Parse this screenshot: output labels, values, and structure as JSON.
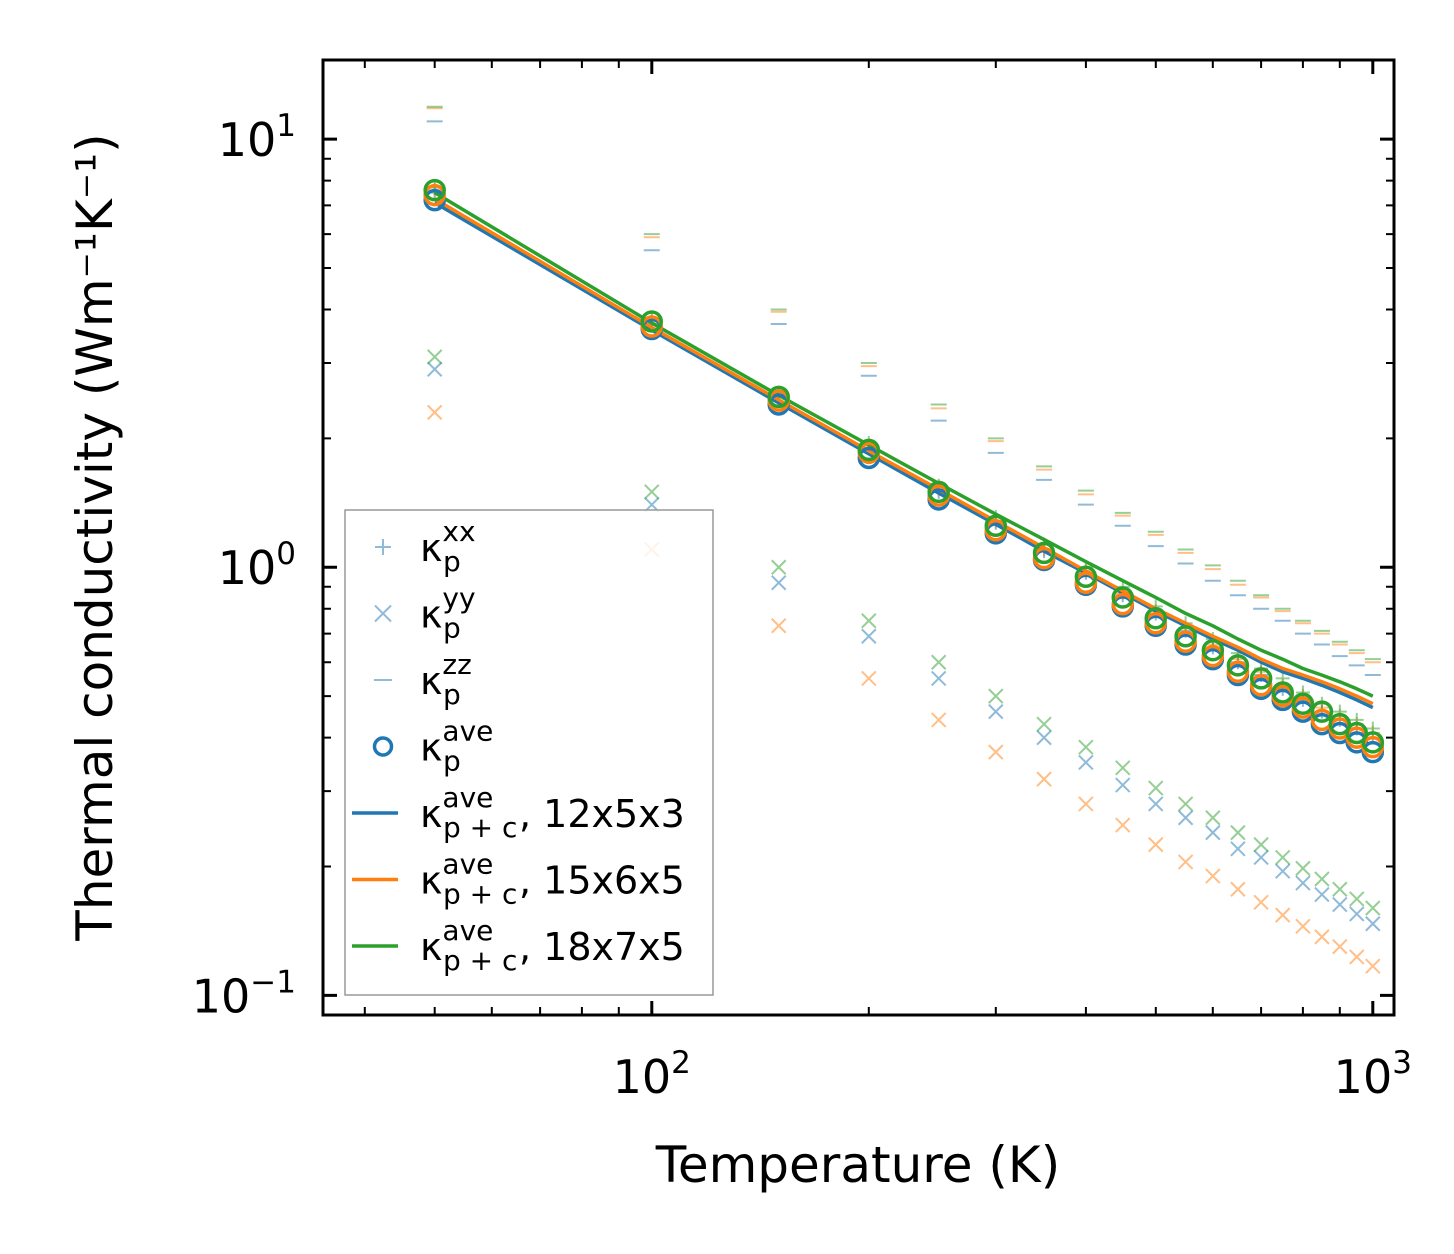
{
  "chart_data": {
    "type": "scatter",
    "title": "",
    "xlabel": "Temperature (K)",
    "ylabel": "Thermal conductivity (Wm⁻¹K⁻¹)",
    "xscale": "log",
    "yscale": "log",
    "xlim": [
      35,
      1070
    ],
    "ylim": [
      0.09,
      15.3
    ],
    "x_ticks": [
      {
        "base": "10",
        "exp": "2",
        "value": 100
      },
      {
        "base": "10",
        "exp": "3",
        "value": 1000
      }
    ],
    "y_ticks": [
      {
        "base": "10",
        "exp": "−1",
        "value": 0.1
      },
      {
        "base": "10",
        "exp": "0",
        "value": 1
      },
      {
        "base": "10",
        "exp": "1",
        "value": 10
      }
    ],
    "legend_position": "lower-left",
    "temperatures": [
      50,
      100,
      150,
      200,
      250,
      300,
      350,
      400,
      450,
      500,
      550,
      600,
      650,
      700,
      750,
      800,
      850,
      900,
      950,
      1000
    ],
    "colors": {
      "blue": "#1f77b4",
      "orange": "#ff7f0e",
      "green": "#2ca02c"
    },
    "legend": [
      {
        "marker": "plus",
        "label": "κ",
        "sub": "p",
        "sup": "xx",
        "suffix": ""
      },
      {
        "marker": "x",
        "label": "κ",
        "sub": "p",
        "sup": "yy",
        "suffix": ""
      },
      {
        "marker": "dash",
        "label": "κ",
        "sub": "p",
        "sup": "zz",
        "suffix": ""
      },
      {
        "marker": "circle",
        "label": "κ",
        "sub": "p",
        "sup": "ave",
        "suffix": ""
      },
      {
        "marker": "line",
        "color": "#1f77b4",
        "label": "κ",
        "sub": "p + c",
        "sup": "ave",
        "suffix": ", 12x5x3"
      },
      {
        "marker": "line",
        "color": "#ff7f0e",
        "label": "κ",
        "sub": "p + c",
        "sup": "ave",
        "suffix": ", 15x6x5"
      },
      {
        "marker": "line",
        "color": "#2ca02c",
        "label": "κ",
        "sub": "p + c",
        "sup": "ave",
        "suffix": ", 18x7x5"
      }
    ],
    "series": [
      {
        "name": "12x5x3",
        "color": "#1f77b4",
        "kxx": [
          7.5,
          3.7,
          2.5,
          1.9,
          1.5,
          1.27,
          1.09,
          0.97,
          0.86,
          0.78,
          0.71,
          0.65,
          0.6,
          0.56,
          0.52,
          0.49,
          0.46,
          0.44,
          0.42,
          0.4
        ],
        "kyy": [
          2.9,
          1.4,
          0.92,
          0.69,
          0.55,
          0.46,
          0.4,
          0.35,
          0.31,
          0.28,
          0.26,
          0.24,
          0.22,
          0.21,
          0.195,
          0.183,
          0.172,
          0.163,
          0.155,
          0.147
        ],
        "kzz": [
          11.0,
          5.5,
          3.7,
          2.8,
          2.2,
          1.85,
          1.6,
          1.4,
          1.25,
          1.12,
          1.02,
          0.93,
          0.86,
          0.8,
          0.75,
          0.7,
          0.66,
          0.62,
          0.59,
          0.56
        ],
        "kave": [
          7.2,
          3.6,
          2.4,
          1.8,
          1.44,
          1.2,
          1.04,
          0.91,
          0.81,
          0.73,
          0.66,
          0.61,
          0.56,
          0.52,
          0.49,
          0.46,
          0.43,
          0.41,
          0.39,
          0.37
        ],
        "kpc": [
          7.1,
          3.58,
          2.42,
          1.84,
          1.49,
          1.26,
          1.09,
          0.97,
          0.87,
          0.79,
          0.73,
          0.68,
          0.64,
          0.6,
          0.57,
          0.55,
          0.53,
          0.51,
          0.49,
          0.47
        ]
      },
      {
        "name": "15x6x5",
        "color": "#ff7f0e",
        "kxx": [
          7.6,
          3.75,
          2.52,
          1.92,
          1.52,
          1.28,
          1.1,
          0.98,
          0.87,
          0.79,
          0.72,
          0.66,
          0.61,
          0.57,
          0.53,
          0.5,
          0.47,
          0.45,
          0.43,
          0.41
        ],
        "kyy": [
          2.3,
          1.1,
          0.73,
          0.55,
          0.44,
          0.37,
          0.32,
          0.28,
          0.25,
          0.225,
          0.205,
          0.19,
          0.177,
          0.165,
          0.154,
          0.145,
          0.137,
          0.13,
          0.123,
          0.117
        ],
        "kzz": [
          11.8,
          5.9,
          3.95,
          2.95,
          2.35,
          1.97,
          1.69,
          1.48,
          1.32,
          1.19,
          1.08,
          0.99,
          0.91,
          0.85,
          0.79,
          0.74,
          0.7,
          0.66,
          0.63,
          0.6
        ],
        "kave": [
          7.4,
          3.65,
          2.45,
          1.85,
          1.47,
          1.22,
          1.05,
          0.92,
          0.82,
          0.74,
          0.67,
          0.62,
          0.57,
          0.53,
          0.5,
          0.47,
          0.44,
          0.42,
          0.4,
          0.38
        ],
        "kpc": [
          7.25,
          3.63,
          2.46,
          1.87,
          1.52,
          1.28,
          1.11,
          0.98,
          0.88,
          0.8,
          0.74,
          0.69,
          0.65,
          0.61,
          0.58,
          0.56,
          0.54,
          0.52,
          0.5,
          0.48
        ]
      },
      {
        "name": "18x7x5",
        "color": "#2ca02c",
        "kxx": [
          7.7,
          3.8,
          2.55,
          1.95,
          1.55,
          1.31,
          1.13,
          1.0,
          0.9,
          0.81,
          0.74,
          0.68,
          0.63,
          0.58,
          0.55,
          0.51,
          0.48,
          0.46,
          0.44,
          0.42
        ],
        "kyy": [
          3.1,
          1.5,
          1.0,
          0.75,
          0.6,
          0.5,
          0.43,
          0.38,
          0.34,
          0.305,
          0.28,
          0.26,
          0.24,
          0.225,
          0.21,
          0.198,
          0.187,
          0.177,
          0.168,
          0.16
        ],
        "kzz": [
          11.9,
          6.0,
          4.0,
          3.0,
          2.4,
          2.0,
          1.72,
          1.51,
          1.34,
          1.21,
          1.1,
          1.01,
          0.93,
          0.86,
          0.8,
          0.75,
          0.71,
          0.67,
          0.64,
          0.61
        ],
        "kave": [
          7.6,
          3.75,
          2.5,
          1.88,
          1.5,
          1.25,
          1.08,
          0.95,
          0.85,
          0.76,
          0.69,
          0.64,
          0.59,
          0.55,
          0.51,
          0.48,
          0.46,
          0.43,
          0.41,
          0.39
        ],
        "kpc": [
          7.5,
          3.72,
          2.52,
          1.93,
          1.57,
          1.33,
          1.16,
          1.03,
          0.93,
          0.85,
          0.78,
          0.73,
          0.68,
          0.64,
          0.61,
          0.58,
          0.56,
          0.54,
          0.52,
          0.5
        ]
      }
    ]
  }
}
